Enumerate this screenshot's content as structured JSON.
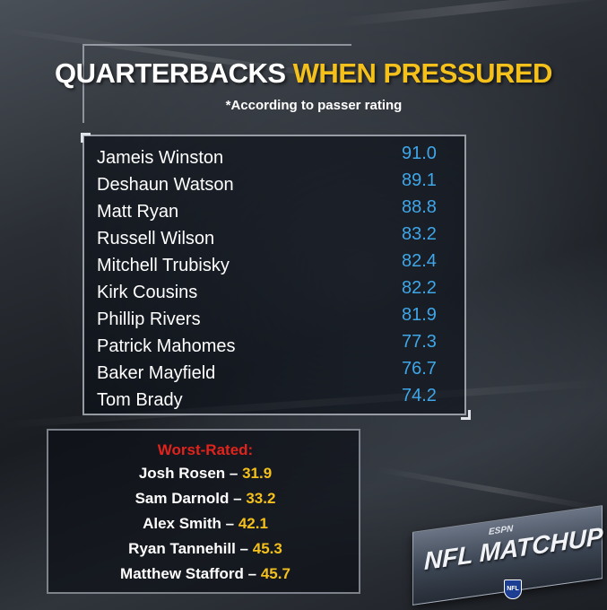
{
  "header": {
    "title_main": "QUARTERBACKS",
    "title_accent": "WHEN PRESSURED",
    "subtitle": "*According to passer rating"
  },
  "top_list": [
    {
      "name": "Jameis Winston",
      "rating": "91.0"
    },
    {
      "name": "Deshaun Watson",
      "rating": "89.1"
    },
    {
      "name": "Matt Ryan",
      "rating": "88.8"
    },
    {
      "name": "Russell Wilson",
      "rating": "83.2"
    },
    {
      "name": "Mitchell Trubisky",
      "rating": "82.4"
    },
    {
      "name": "Kirk Cousins",
      "rating": "82.2"
    },
    {
      "name": "Phillip Rivers",
      "rating": "81.9"
    },
    {
      "name": "Patrick Mahomes",
      "rating": "77.3"
    },
    {
      "name": "Baker Mayfield",
      "rating": "76.7"
    },
    {
      "name": "Tom Brady",
      "rating": "74.2"
    }
  ],
  "worst": {
    "title": "Worst-Rated:",
    "items": [
      {
        "name": "Josh Rosen",
        "rating": "31.9"
      },
      {
        "name": "Sam Darnold",
        "rating": "33.2"
      },
      {
        "name": "Alex Smith",
        "rating": "42.1"
      },
      {
        "name": "Ryan Tannehill",
        "rating": "45.3"
      },
      {
        "name": "Matthew Stafford",
        "rating": "45.7"
      }
    ]
  },
  "logo": {
    "network": "ESPN",
    "show": "NFL MATCHUP",
    "badge": "NFL"
  },
  "colors": {
    "accent_yellow": "#f4c01c",
    "rating_blue": "#3fa6e8",
    "worst_red": "#e0231c"
  }
}
